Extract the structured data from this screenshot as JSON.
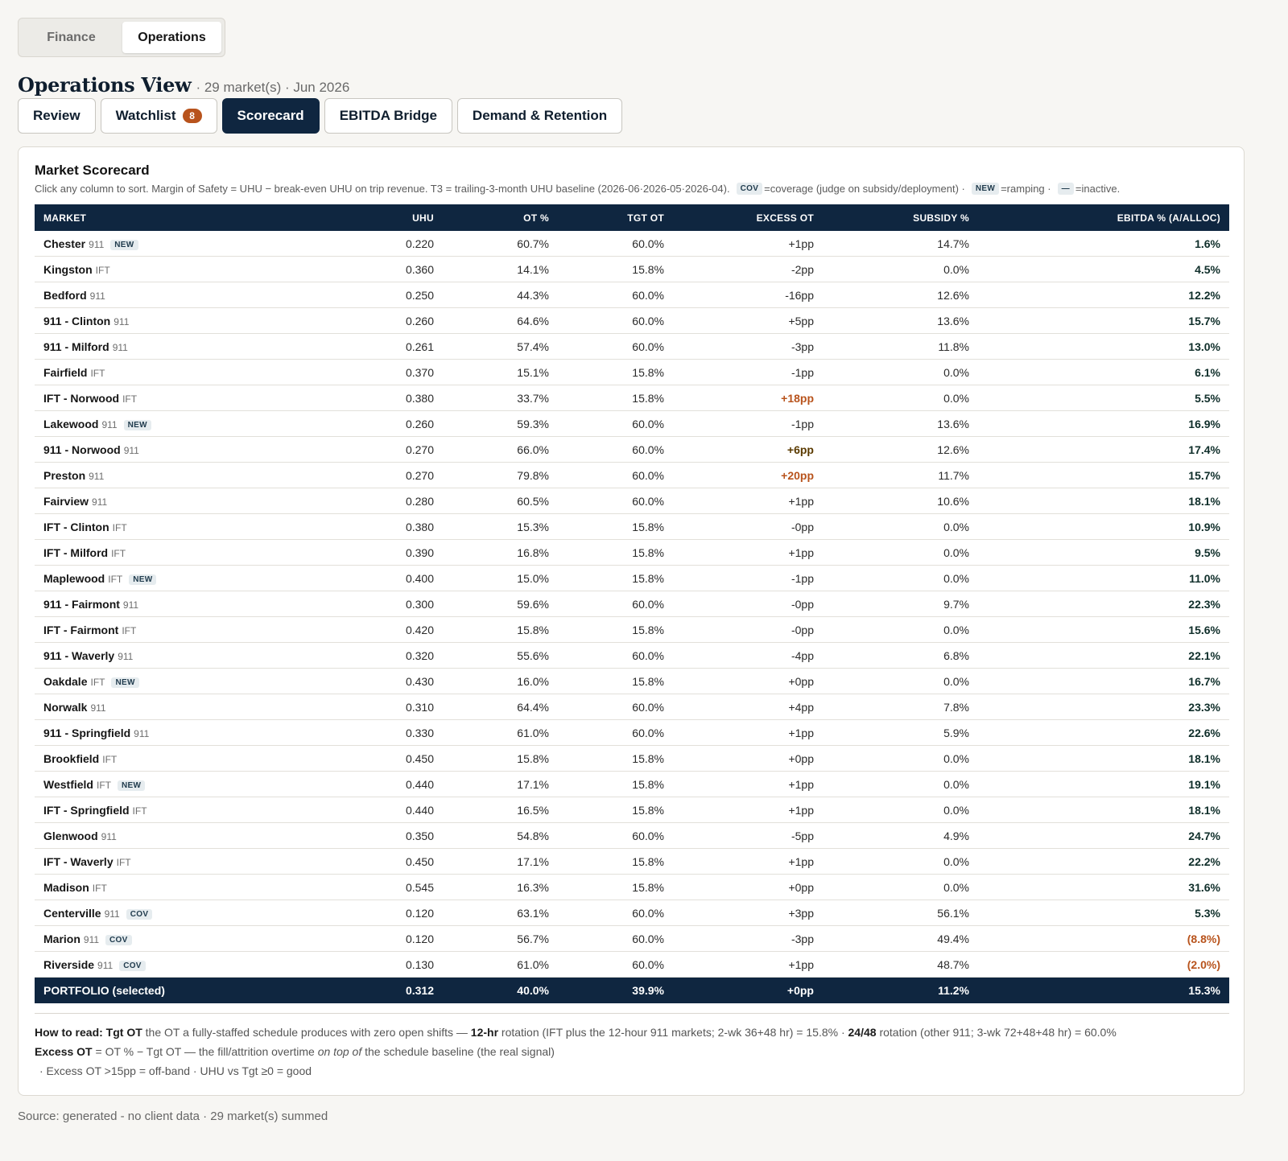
{
  "view_toggle": {
    "options": [
      "Finance",
      "Operations"
    ],
    "selected": "Operations"
  },
  "header": {
    "title": "Operations View",
    "subtitle": "· 29 market(s) · Jun 2026"
  },
  "tabs": [
    {
      "label": "Review"
    },
    {
      "label": "Watchlist",
      "badge": "8"
    },
    {
      "label": "Scorecard",
      "active": true
    },
    {
      "label": "EBITDA Bridge"
    },
    {
      "label": "Demand & Retention"
    }
  ],
  "scorecard": {
    "title": "Market Scorecard",
    "desc_main": "Click any column to sort. Margin of Safety = UHU − break-even UHU on trip revenue. T3 = trailing-3-month UHU baseline (2026-06·2026-05·2026-04).",
    "legend": [
      {
        "chip": "COV",
        "text": "=coverage (judge on subsidy/deployment) ·"
      },
      {
        "chip": "NEW",
        "text": "=ramping ·"
      },
      {
        "chip": "—",
        "text": "=inactive."
      }
    ],
    "columns": [
      "MARKET",
      "UHU",
      "OT %",
      "TGT OT",
      "EXCESS OT",
      "SUBSIDY %",
      "EBITDA % (A/ALLOC)"
    ],
    "rows": [
      {
        "name": "Chester",
        "type": "911",
        "chip": "NEW",
        "uhu": "0.220",
        "ot": "60.7%",
        "tgt": "60.0%",
        "excess": "+1pp",
        "subsidy": "14.7%",
        "ebitda": "1.6%"
      },
      {
        "name": "Kingston",
        "type": "IFT",
        "uhu": "0.360",
        "ot": "14.1%",
        "tgt": "15.8%",
        "excess": "-2pp",
        "subsidy": "0.0%",
        "ebitda": "4.5%"
      },
      {
        "name": "Bedford",
        "type": "911",
        "uhu": "0.250",
        "ot": "44.3%",
        "tgt": "60.0%",
        "excess": "-16pp",
        "subsidy": "12.6%",
        "ebitda": "12.2%"
      },
      {
        "name": "911 - Clinton",
        "type": "911",
        "uhu": "0.260",
        "ot": "64.6%",
        "tgt": "60.0%",
        "excess": "+5pp",
        "subsidy": "13.6%",
        "ebitda": "15.7%"
      },
      {
        "name": "911 - Milford",
        "type": "911",
        "uhu": "0.261",
        "ot": "57.4%",
        "tgt": "60.0%",
        "excess": "-3pp",
        "subsidy": "11.8%",
        "ebitda": "13.0%"
      },
      {
        "name": "Fairfield",
        "type": "IFT",
        "uhu": "0.370",
        "ot": "15.1%",
        "tgt": "15.8%",
        "excess": "-1pp",
        "subsidy": "0.0%",
        "ebitda": "6.1%"
      },
      {
        "name": "IFT - Norwood",
        "type": "IFT",
        "uhu": "0.380",
        "ot": "33.7%",
        "tgt": "15.8%",
        "excess": "+18pp",
        "excess_flag": "neg",
        "subsidy": "0.0%",
        "ebitda": "5.5%"
      },
      {
        "name": "Lakewood",
        "type": "911",
        "chip": "NEW",
        "uhu": "0.260",
        "ot": "59.3%",
        "tgt": "60.0%",
        "excess": "-1pp",
        "subsidy": "13.6%",
        "ebitda": "16.9%"
      },
      {
        "name": "911 - Norwood",
        "type": "911",
        "uhu": "0.270",
        "ot": "66.0%",
        "tgt": "60.0%",
        "excess": "+6pp",
        "excess_flag": "warn",
        "subsidy": "12.6%",
        "ebitda": "17.4%"
      },
      {
        "name": "Preston",
        "type": "911",
        "uhu": "0.270",
        "ot": "79.8%",
        "tgt": "60.0%",
        "excess": "+20pp",
        "excess_flag": "neg",
        "subsidy": "11.7%",
        "ebitda": "15.7%"
      },
      {
        "name": "Fairview",
        "type": "911",
        "uhu": "0.280",
        "ot": "60.5%",
        "tgt": "60.0%",
        "excess": "+1pp",
        "subsidy": "10.6%",
        "ebitda": "18.1%"
      },
      {
        "name": "IFT - Clinton",
        "type": "IFT",
        "uhu": "0.380",
        "ot": "15.3%",
        "tgt": "15.8%",
        "excess": "-0pp",
        "subsidy": "0.0%",
        "ebitda": "10.9%"
      },
      {
        "name": "IFT - Milford",
        "type": "IFT",
        "uhu": "0.390",
        "ot": "16.8%",
        "tgt": "15.8%",
        "excess": "+1pp",
        "subsidy": "0.0%",
        "ebitda": "9.5%"
      },
      {
        "name": "Maplewood",
        "type": "IFT",
        "chip": "NEW",
        "uhu": "0.400",
        "ot": "15.0%",
        "tgt": "15.8%",
        "excess": "-1pp",
        "subsidy": "0.0%",
        "ebitda": "11.0%"
      },
      {
        "name": "911 - Fairmont",
        "type": "911",
        "uhu": "0.300",
        "ot": "59.6%",
        "tgt": "60.0%",
        "excess": "-0pp",
        "subsidy": "9.7%",
        "ebitda": "22.3%"
      },
      {
        "name": "IFT - Fairmont",
        "type": "IFT",
        "uhu": "0.420",
        "ot": "15.8%",
        "tgt": "15.8%",
        "excess": "-0pp",
        "subsidy": "0.0%",
        "ebitda": "15.6%"
      },
      {
        "name": "911 - Waverly",
        "type": "911",
        "uhu": "0.320",
        "ot": "55.6%",
        "tgt": "60.0%",
        "excess": "-4pp",
        "subsidy": "6.8%",
        "ebitda": "22.1%"
      },
      {
        "name": "Oakdale",
        "type": "IFT",
        "chip": "NEW",
        "uhu": "0.430",
        "ot": "16.0%",
        "tgt": "15.8%",
        "excess": "+0pp",
        "subsidy": "0.0%",
        "ebitda": "16.7%"
      },
      {
        "name": "Norwalk",
        "type": "911",
        "uhu": "0.310",
        "ot": "64.4%",
        "tgt": "60.0%",
        "excess": "+4pp",
        "subsidy": "7.8%",
        "ebitda": "23.3%"
      },
      {
        "name": "911 - Springfield",
        "type": "911",
        "uhu": "0.330",
        "ot": "61.0%",
        "tgt": "60.0%",
        "excess": "+1pp",
        "subsidy": "5.9%",
        "ebitda": "22.6%"
      },
      {
        "name": "Brookfield",
        "type": "IFT",
        "uhu": "0.450",
        "ot": "15.8%",
        "tgt": "15.8%",
        "excess": "+0pp",
        "subsidy": "0.0%",
        "ebitda": "18.1%"
      },
      {
        "name": "Westfield",
        "type": "IFT",
        "chip": "NEW",
        "uhu": "0.440",
        "ot": "17.1%",
        "tgt": "15.8%",
        "excess": "+1pp",
        "subsidy": "0.0%",
        "ebitda": "19.1%"
      },
      {
        "name": "IFT - Springfield",
        "type": "IFT",
        "uhu": "0.440",
        "ot": "16.5%",
        "tgt": "15.8%",
        "excess": "+1pp",
        "subsidy": "0.0%",
        "ebitda": "18.1%"
      },
      {
        "name": "Glenwood",
        "type": "911",
        "uhu": "0.350",
        "ot": "54.8%",
        "tgt": "60.0%",
        "excess": "-5pp",
        "subsidy": "4.9%",
        "ebitda": "24.7%"
      },
      {
        "name": "IFT - Waverly",
        "type": "IFT",
        "uhu": "0.450",
        "ot": "17.1%",
        "tgt": "15.8%",
        "excess": "+1pp",
        "subsidy": "0.0%",
        "ebitda": "22.2%"
      },
      {
        "name": "Madison",
        "type": "IFT",
        "uhu": "0.545",
        "ot": "16.3%",
        "tgt": "15.8%",
        "excess": "+0pp",
        "subsidy": "0.0%",
        "ebitda": "31.6%"
      },
      {
        "name": "Centerville",
        "type": "911",
        "chip": "COV",
        "uhu": "0.120",
        "ot": "63.1%",
        "tgt": "60.0%",
        "excess": "+3pp",
        "subsidy": "56.1%",
        "ebitda": "5.3%"
      },
      {
        "name": "Marion",
        "type": "911",
        "chip": "COV",
        "uhu": "0.120",
        "ot": "56.7%",
        "tgt": "60.0%",
        "excess": "-3pp",
        "subsidy": "49.4%",
        "ebitda": "(8.8%)",
        "ebitda_flag": "neg"
      },
      {
        "name": "Riverside",
        "type": "911",
        "chip": "COV",
        "uhu": "0.130",
        "ot": "61.0%",
        "tgt": "60.0%",
        "excess": "+1pp",
        "subsidy": "48.7%",
        "ebitda": "(2.0%)",
        "ebitda_flag": "neg"
      }
    ],
    "total": {
      "name": "PORTFOLIO (selected)",
      "uhu": "0.312",
      "ot": "40.0%",
      "tgt": "39.9%",
      "excess": "+0pp",
      "subsidy": "11.2%",
      "ebitda": "15.3%"
    }
  },
  "notes": {
    "line1_bold": "How to read: Tgt OT",
    "line1_a": " the OT a fully-staffed schedule produces with zero open shifts — ",
    "line1_b_bold": "12-hr",
    "line1_c": " rotation (IFT plus the 12-hour 911 markets; 2-wk 36+48 hr) = 15.8% · ",
    "line1_d_bold": "24/48",
    "line1_e": " rotation (other 911; 3-wk 72+48+48 hr) = 60.0%",
    "line2_bold": "Excess OT",
    "line2_a": " = OT % − Tgt OT — the fill/attrition overtime ",
    "line2_em": "on top of",
    "line2_b": " the schedule baseline (the real signal)",
    "line3": "·   Excess OT >15pp = off-band · UHU vs Tgt ≥0 = good"
  },
  "footer": {
    "source": "Source: generated - no client data · 29 market(s) summed"
  },
  "colors": {
    "navy": "#0f2640",
    "accent_orange": "#b8531c",
    "badge_bg": "#e6ecef"
  }
}
